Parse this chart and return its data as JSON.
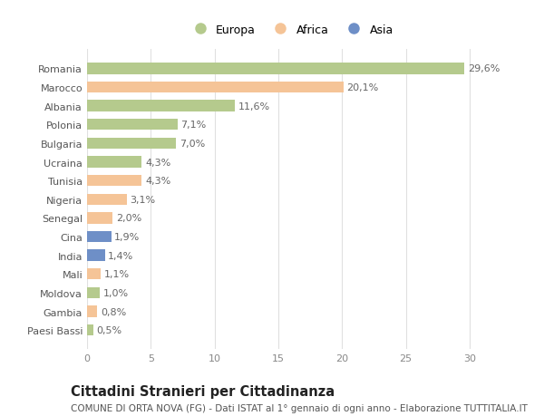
{
  "categories": [
    "Paesi Bassi",
    "Gambia",
    "Moldova",
    "Mali",
    "India",
    "Cina",
    "Senegal",
    "Nigeria",
    "Tunisia",
    "Ucraina",
    "Bulgaria",
    "Polonia",
    "Albania",
    "Marocco",
    "Romania"
  ],
  "values": [
    0.5,
    0.8,
    1.0,
    1.1,
    1.4,
    1.9,
    2.0,
    3.1,
    4.3,
    4.3,
    7.0,
    7.1,
    11.6,
    20.1,
    29.6
  ],
  "labels": [
    "0,5%",
    "0,8%",
    "1,0%",
    "1,1%",
    "1,4%",
    "1,9%",
    "2,0%",
    "3,1%",
    "4,3%",
    "4,3%",
    "7,0%",
    "7,1%",
    "11,6%",
    "20,1%",
    "29,6%"
  ],
  "continents": [
    "Europa",
    "Africa",
    "Europa",
    "Africa",
    "Asia",
    "Asia",
    "Africa",
    "Africa",
    "Africa",
    "Europa",
    "Europa",
    "Europa",
    "Europa",
    "Africa",
    "Europa"
  ],
  "continent_colors": {
    "Europa": "#b5ca8d",
    "Africa": "#f5c497",
    "Asia": "#6e8fc7"
  },
  "legend_entries": [
    "Europa",
    "Africa",
    "Asia"
  ],
  "legend_colors": [
    "#b5ca8d",
    "#f5c497",
    "#6e8fc7"
  ],
  "title": "Cittadini Stranieri per Cittadinanza",
  "subtitle": "COMUNE DI ORTA NOVA (FG) - Dati ISTAT al 1° gennaio di ogni anno - Elaborazione TUTTITALIA.IT",
  "xlim": [
    0,
    32
  ],
  "xticks": [
    0,
    5,
    10,
    15,
    20,
    25,
    30
  ],
  "background_color": "#ffffff",
  "grid_color": "#e0e0e0",
  "bar_height": 0.6,
  "label_fontsize": 8,
  "tick_fontsize": 8,
  "title_fontsize": 10.5,
  "subtitle_fontsize": 7.5
}
